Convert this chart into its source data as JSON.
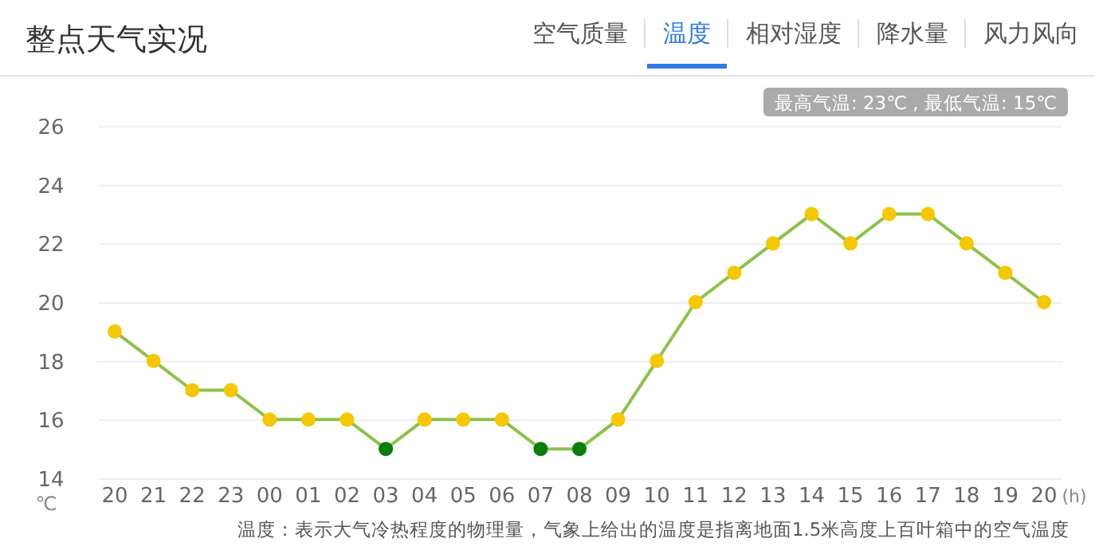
{
  "chart_data": {
    "type": "line",
    "title": "整点天气实况",
    "ylabel": "℃",
    "xlabel": "(h)",
    "categories": [
      "20",
      "21",
      "22",
      "23",
      "00",
      "01",
      "02",
      "03",
      "04",
      "05",
      "06",
      "07",
      "08",
      "09",
      "10",
      "11",
      "12",
      "13",
      "14",
      "15",
      "16",
      "17",
      "18",
      "19",
      "20"
    ],
    "series": [
      {
        "color": "#8bc34a",
        "values": [
          19,
          18,
          17,
          17,
          16,
          16,
          16,
          15,
          16,
          16,
          16,
          15,
          15,
          16,
          18,
          20,
          21,
          22,
          23,
          22,
          23,
          23,
          22,
          21,
          20
        ],
        "colors": [
          "#f5c800",
          "#f5c800",
          "#f5c800",
          "#f5c800",
          "#f5c800",
          "#f5c800",
          "#f5c800",
          "#0a7d0a",
          "#f5c800",
          "#f5c800",
          "#f5c800",
          "#0a7d0a",
          "#0a7d0a",
          "#f5c800",
          "#f5c800",
          "#f5c800",
          "#f5c800",
          "#f5c800",
          "#f5c800",
          "#f5c800",
          "#f5c800",
          "#f5c800",
          "#f5c800",
          "#f5c800",
          "#f5c800"
        ]
      }
    ],
    "ylim": [
      14,
      26
    ],
    "yticks": [
      14,
      16,
      18,
      20,
      22,
      24,
      26
    ],
    "grid": "y",
    "marker": "circle",
    "annotations": [
      "空气质量",
      "温度",
      "相对湿度",
      "降水量",
      "风力风向",
      "最高气温: 23℃ , 最低气温: 15℃",
      "温度：表示大气冷热程度的物理量，气象上给出的温度是指离地面1.5米高度上百叶箱中的空气温度"
    ]
  }
}
